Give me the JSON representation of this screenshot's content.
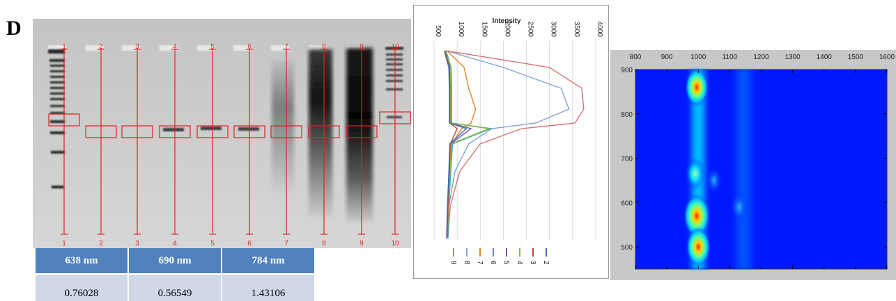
{
  "panel_label": "D",
  "gel": {
    "lane_labels": [
      "1",
      "2",
      "3",
      "4",
      "5",
      "6",
      "7",
      "8",
      "9",
      "10"
    ],
    "annotation_color": "#e02020"
  },
  "table": {
    "headers": [
      "638 nm",
      "690 nm",
      "784 nm"
    ],
    "values": [
      "0.76028",
      "0.56549",
      "1.43106"
    ],
    "header_color": "#4f81bd",
    "cell_color": "#d0d8e8"
  },
  "chart_data": [
    {
      "type": "line",
      "title": "Intensity",
      "xlabel": "Intensity",
      "xlim": [
        500,
        4000
      ],
      "x_ticks": [
        "500",
        "1000",
        "1500",
        "2000",
        "2500",
        "3000",
        "3500",
        "4000"
      ],
      "series": [
        {
          "name": "9",
          "color": "#d9736f",
          "values": [
            760,
            3000,
            3700,
            3740,
            3550,
            2400,
            1500,
            1050,
            850,
            800
          ]
        },
        {
          "name": "8",
          "color": "#7fa2d6",
          "values": [
            760,
            2000,
            3250,
            3420,
            2700,
            1750,
            1250,
            950,
            820,
            790
          ]
        },
        {
          "name": "7",
          "color": "#e8822a",
          "values": [
            780,
            1150,
            1250,
            1400,
            1300,
            1100,
            880,
            830,
            800,
            790
          ]
        },
        {
          "name": "6",
          "color": "#2aa8c8",
          "values": [
            760,
            870,
            880,
            880,
            880,
            1730,
            900,
            860,
            820,
            800
          ]
        },
        {
          "name": "5",
          "color": "#7454a8",
          "values": [
            740,
            840,
            850,
            850,
            850,
            1300,
            860,
            840,
            810,
            790
          ]
        },
        {
          "name": "4",
          "color": "#8fb43a",
          "values": [
            750,
            860,
            860,
            860,
            860,
            1690,
            870,
            850,
            810,
            790
          ]
        },
        {
          "name": "3",
          "color": "#c0403a",
          "values": [
            730,
            830,
            840,
            840,
            840,
            1000,
            850,
            830,
            800,
            780
          ]
        },
        {
          "name": "2",
          "color": "#3f6bb4",
          "values": [
            720,
            820,
            830,
            830,
            830,
            1200,
            840,
            820,
            790,
            770
          ]
        }
      ]
    },
    {
      "type": "heatmap",
      "x_ticks": [
        "800",
        "900",
        "1000",
        "1100",
        "1200",
        "1300",
        "1400",
        "1500",
        "1600"
      ],
      "y_ticks": [
        "900",
        "800",
        "700",
        "600",
        "500"
      ],
      "xlim": [
        800,
        1600
      ],
      "ylim": [
        450,
        900
      ],
      "hotspots": [
        {
          "x": 995,
          "y": 570,
          "level": 1.0
        },
        {
          "x": 1000,
          "y": 500,
          "level": 0.85
        },
        {
          "x": 995,
          "y": 860,
          "level": 0.8
        },
        {
          "x": 990,
          "y": 665,
          "level": 0.55
        },
        {
          "x": 1050,
          "y": 650,
          "level": 0.4
        },
        {
          "x": 1130,
          "y": 590,
          "level": 0.45
        }
      ]
    }
  ]
}
